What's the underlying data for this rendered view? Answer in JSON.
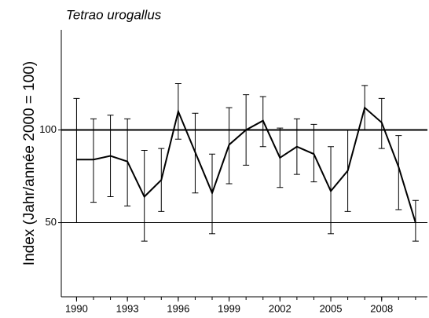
{
  "chart_data": {
    "type": "line",
    "title": "Tetrao urogallus",
    "y_label": "Index (Jahr/année 2000 = 100)",
    "x": [
      1990,
      1991,
      1992,
      1993,
      1994,
      1995,
      1996,
      1997,
      1998,
      1999,
      2000,
      2001,
      2002,
      2003,
      2004,
      2005,
      2006,
      2007,
      2008,
      2009,
      2010
    ],
    "values": [
      84,
      84,
      86,
      83,
      64,
      73,
      110,
      88,
      66,
      92,
      100,
      105,
      85,
      91,
      87,
      67,
      78,
      112,
      104,
      80,
      50
    ],
    "upper": [
      117,
      106,
      108,
      106,
      89,
      90,
      125,
      109,
      87,
      112,
      119,
      118,
      101,
      106,
      103,
      91,
      100,
      124,
      117,
      97,
      62
    ],
    "lower": [
      50,
      61,
      64,
      59,
      40,
      56,
      95,
      66,
      44,
      71,
      81,
      91,
      69,
      76,
      72,
      44,
      56,
      100,
      90,
      57,
      40
    ],
    "color": "#000000",
    "xlim": [
      1989.1,
      2010.7
    ],
    "xticks": [
      1990,
      1993,
      1996,
      1999,
      2002,
      2005,
      2008
    ],
    "ylim": [
      10,
      154
    ],
    "yticks": [
      50,
      100
    ],
    "reference_line": 100,
    "grid": true
  }
}
